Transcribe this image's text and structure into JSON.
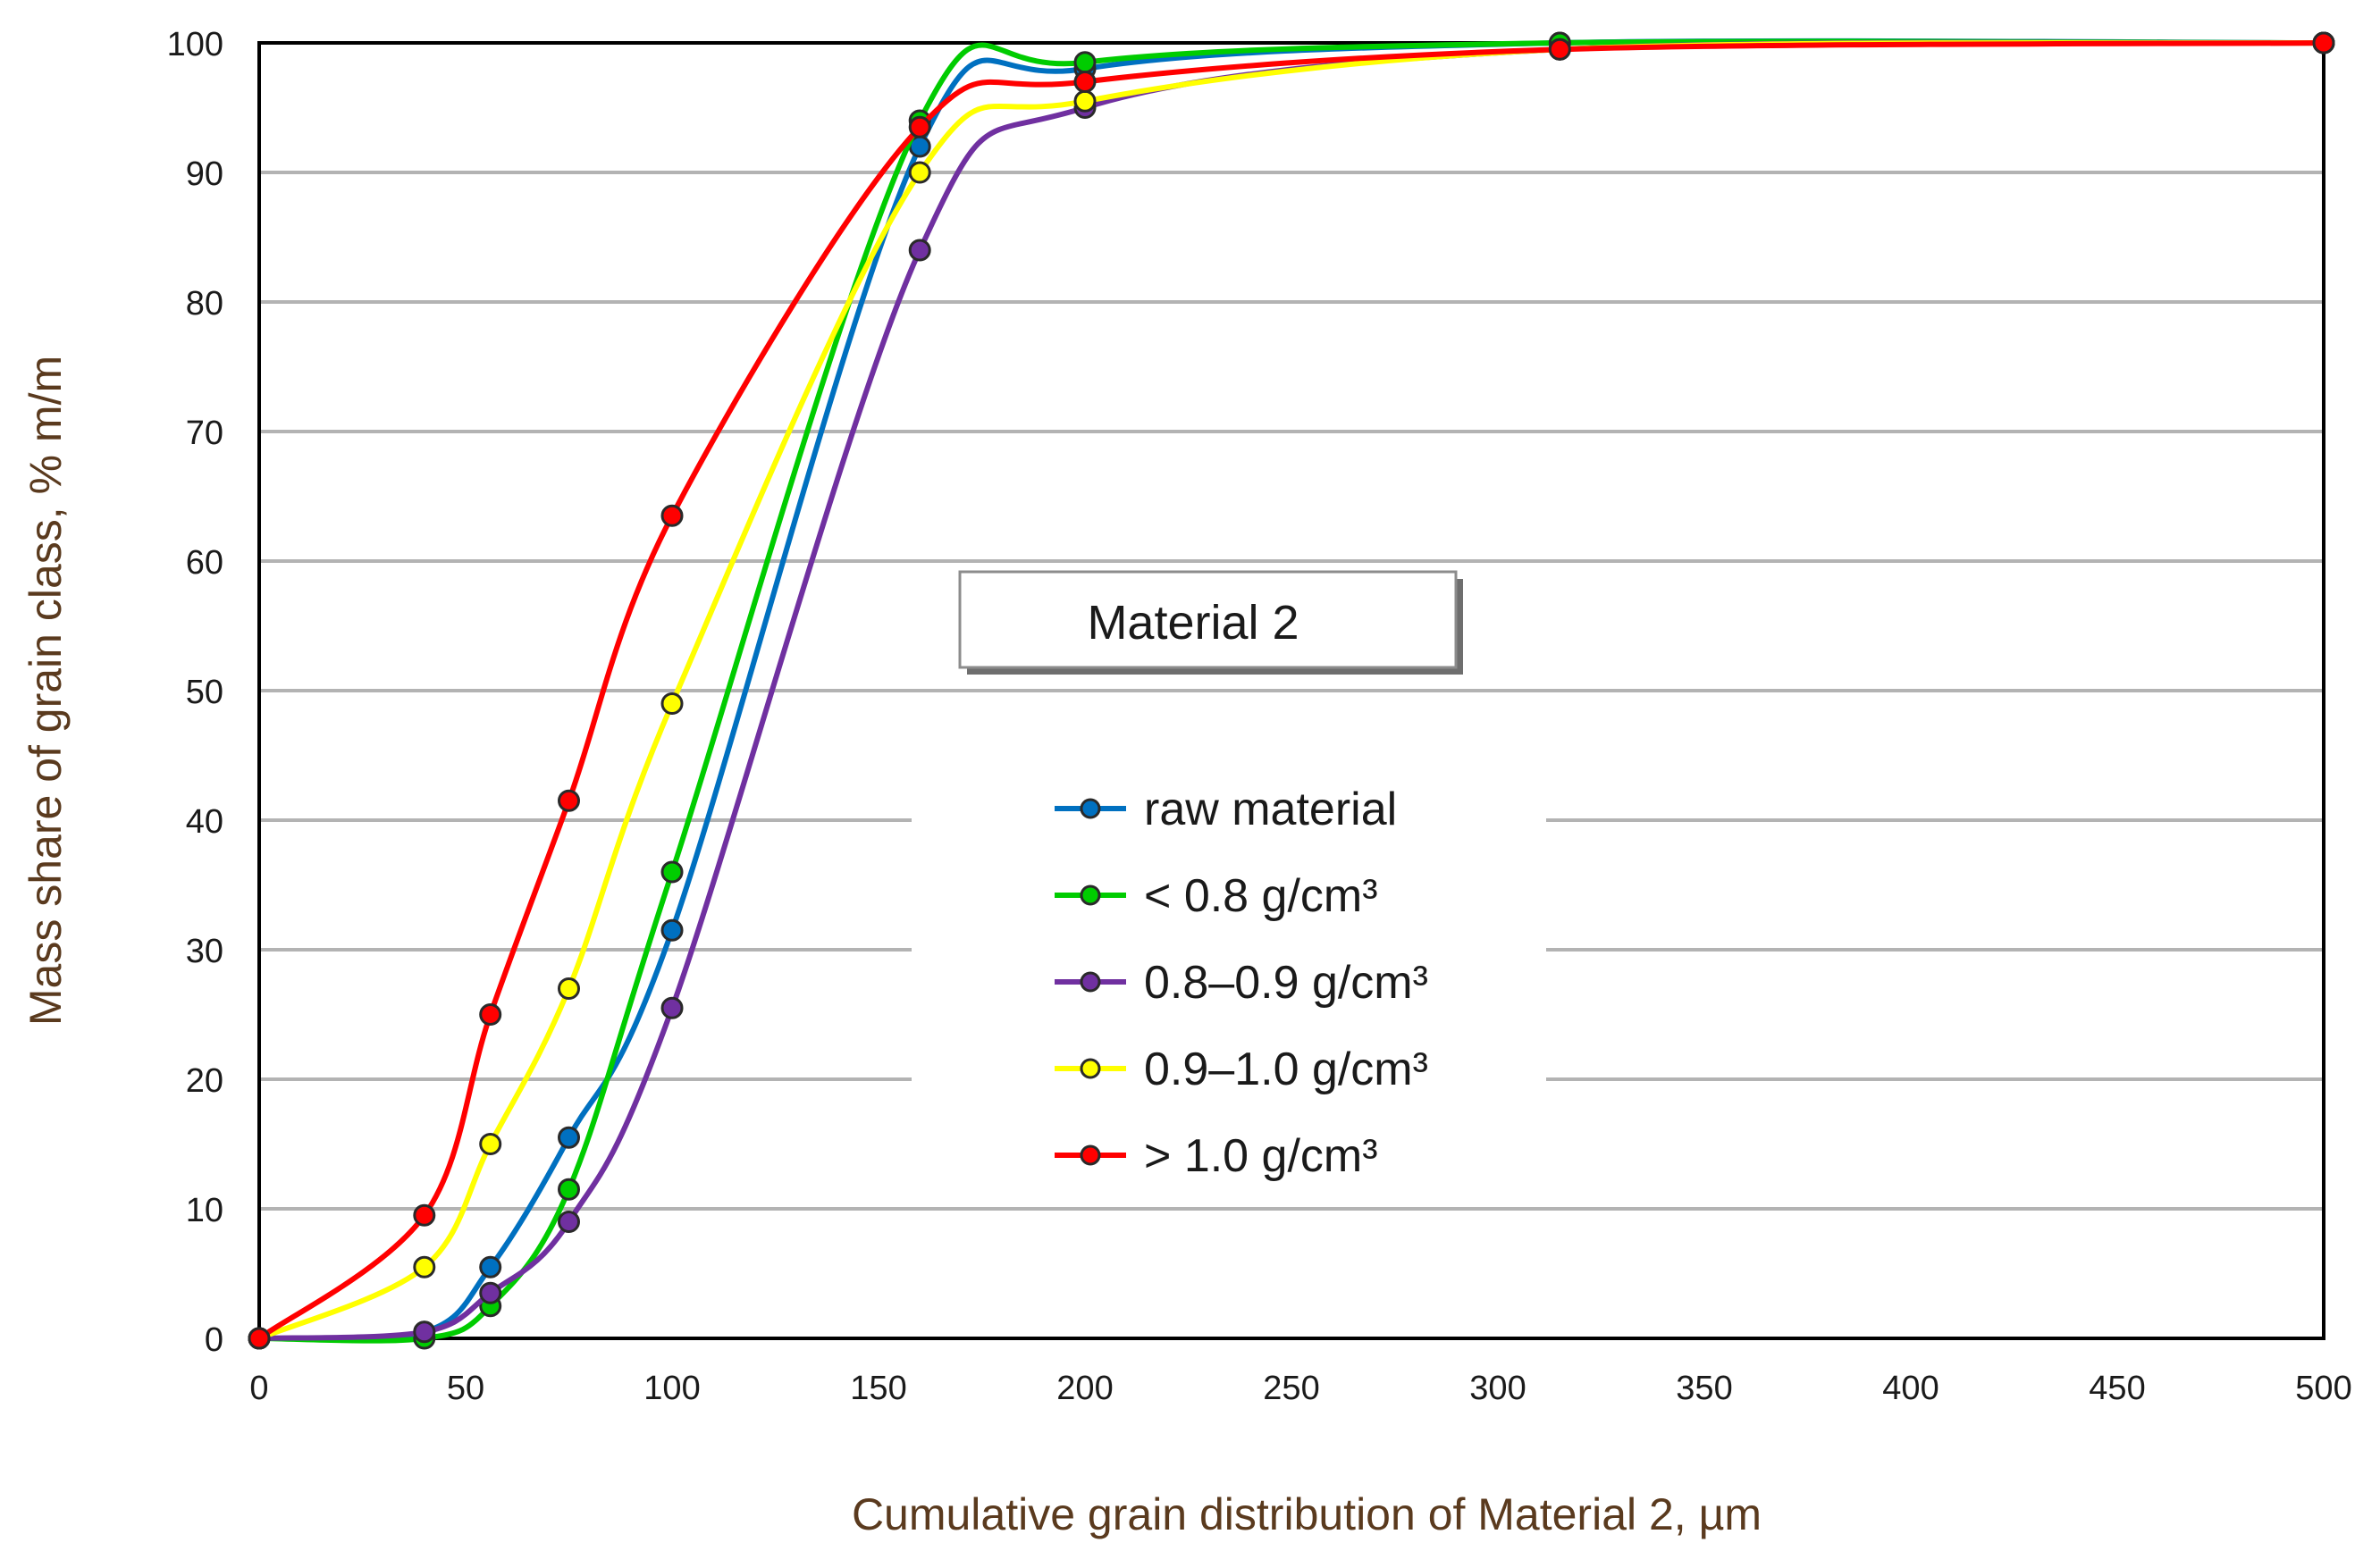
{
  "chart_data": {
    "type": "line",
    "annotation": "Material 2",
    "xlabel": "Cumulative grain distribution of Material 2, µm",
    "ylabel": "Mass share of grain class, % m/m",
    "x_ticks": [
      "0",
      "50",
      "100",
      "150",
      "200",
      "250",
      "300",
      "350",
      "400",
      "450",
      "500"
    ],
    "x_tick_values": [
      0,
      50,
      100,
      150,
      200,
      250,
      300,
      350,
      400,
      450,
      500
    ],
    "y_ticks": [
      "0",
      "10",
      "20",
      "30",
      "40",
      "50",
      "60",
      "70",
      "80",
      "90",
      "100"
    ],
    "ylim": [
      0,
      100
    ],
    "grid": "horizontal",
    "legend_position": "center",
    "series": [
      {
        "name": "raw material",
        "color": "#0070c0",
        "x": [
          0,
          40,
          56,
          75,
          100,
          160,
          200,
          315,
          500
        ],
        "values": [
          0,
          0.5,
          5.5,
          15.5,
          31.5,
          92,
          98,
          100,
          100
        ]
      },
      {
        "name": "< 0.8 g/cm³",
        "color": "#00cc00",
        "x": [
          0,
          40,
          56,
          75,
          100,
          160,
          200,
          315,
          500
        ],
        "values": [
          0,
          0,
          2.5,
          11.5,
          36,
          94,
          98.5,
          100,
          100
        ]
      },
      {
        "name": "0.8–0.9 g/cm³",
        "color": "#7030a0",
        "x": [
          0,
          40,
          56,
          75,
          100,
          160,
          200,
          315,
          500
        ],
        "values": [
          0,
          0.5,
          3.5,
          9,
          25.5,
          84,
          95,
          99.5,
          100
        ]
      },
      {
        "name": "0.9–1.0 g/cm³",
        "color": "#ffff00",
        "x": [
          0,
          40,
          56,
          75,
          100,
          160,
          200,
          315,
          500
        ],
        "values": [
          0,
          5.5,
          15,
          27,
          49,
          90,
          95.5,
          99.5,
          100
        ]
      },
      {
        "name": "> 1.0 g/cm³",
        "color": "#ff0000",
        "x": [
          0,
          40,
          56,
          75,
          100,
          160,
          200,
          315,
          500
        ],
        "values": [
          0,
          9.5,
          25,
          41.5,
          63.5,
          93.5,
          97,
          99.5,
          100
        ]
      }
    ]
  }
}
